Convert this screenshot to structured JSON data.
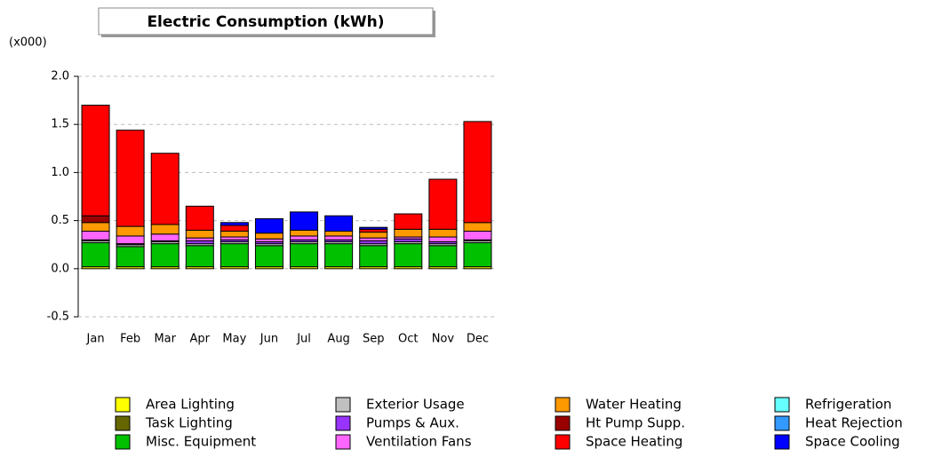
{
  "chart_data": {
    "type": "stacked_bar",
    "title": "Electric Consumption (kWh)",
    "y_unit_label": "(x000)",
    "categories": [
      "Jan",
      "Feb",
      "Mar",
      "Apr",
      "May",
      "Jun",
      "Jul",
      "Aug",
      "Sep",
      "Oct",
      "Nov",
      "Dec"
    ],
    "ylim": [
      -0.5,
      2.0
    ],
    "yticks": [
      -0.5,
      {
        "value": 0,
        "label": "0.0"
      },
      0.5,
      {
        "value": 1,
        "label": "1.0"
      },
      1.5,
      {
        "value": 2,
        "label": "2.0"
      }
    ],
    "grid": true,
    "series": [
      {
        "name": "Area Lighting",
        "color": "#ffff00",
        "values": [
          0.02,
          0.02,
          0.02,
          0.02,
          0.02,
          0.02,
          0.02,
          0.02,
          0.02,
          0.02,
          0.02,
          0.02
        ]
      },
      {
        "name": "Task Lighting",
        "color": "#666600",
        "values": [
          0,
          0,
          0,
          0,
          0,
          0,
          0,
          0,
          0,
          0,
          0,
          0
        ]
      },
      {
        "name": "Misc. Equipment",
        "color": "#00c000",
        "values": [
          0.25,
          0.21,
          0.24,
          0.22,
          0.24,
          0.22,
          0.24,
          0.24,
          0.22,
          0.24,
          0.22,
          0.25
        ]
      },
      {
        "name": "Exterior Usage",
        "color": "#c0c0c0",
        "values": [
          0.02,
          0.02,
          0.02,
          0.02,
          0.02,
          0.02,
          0.02,
          0.02,
          0.02,
          0.02,
          0.02,
          0.02
        ]
      },
      {
        "name": "Pumps & Aux.",
        "color": "#9933ff",
        "values": [
          0.01,
          0.01,
          0.01,
          0.03,
          0.02,
          0.02,
          0.02,
          0.02,
          0.03,
          0.03,
          0.02,
          0.01
        ]
      },
      {
        "name": "Ventilation Fans",
        "color": "#ff66ff",
        "values": [
          0.09,
          0.08,
          0.07,
          0.03,
          0.03,
          0.03,
          0.04,
          0.04,
          0.03,
          0.02,
          0.05,
          0.09
        ]
      },
      {
        "name": "Water Heating",
        "color": "#ff9900",
        "values": [
          0.09,
          0.1,
          0.1,
          0.08,
          0.06,
          0.06,
          0.06,
          0.05,
          0.06,
          0.08,
          0.08,
          0.09
        ]
      },
      {
        "name": "Ht Pump Supp.",
        "color": "#990000",
        "values": [
          0.07,
          0,
          0,
          0,
          0,
          0,
          0,
          0,
          0,
          0,
          0,
          0
        ]
      },
      {
        "name": "Space Heating",
        "color": "#ff0000",
        "values": [
          1.15,
          1.0,
          0.74,
          0.25,
          0.06,
          0,
          0,
          0,
          0.03,
          0.16,
          0.52,
          1.05
        ]
      },
      {
        "name": "Refrigeration",
        "color": "#66ffff",
        "values": [
          0,
          0,
          0,
          0,
          0,
          0,
          0,
          0,
          0,
          0,
          0,
          0
        ]
      },
      {
        "name": "Heat Rejection",
        "color": "#3399ff",
        "values": [
          0,
          0,
          0,
          0,
          0,
          0,
          0,
          0,
          0,
          0,
          0,
          0
        ]
      },
      {
        "name": "Space Cooling",
        "color": "#0000ff",
        "values": [
          0,
          0,
          0,
          0,
          0.03,
          0.15,
          0.19,
          0.16,
          0.02,
          0,
          0,
          0
        ]
      }
    ]
  }
}
